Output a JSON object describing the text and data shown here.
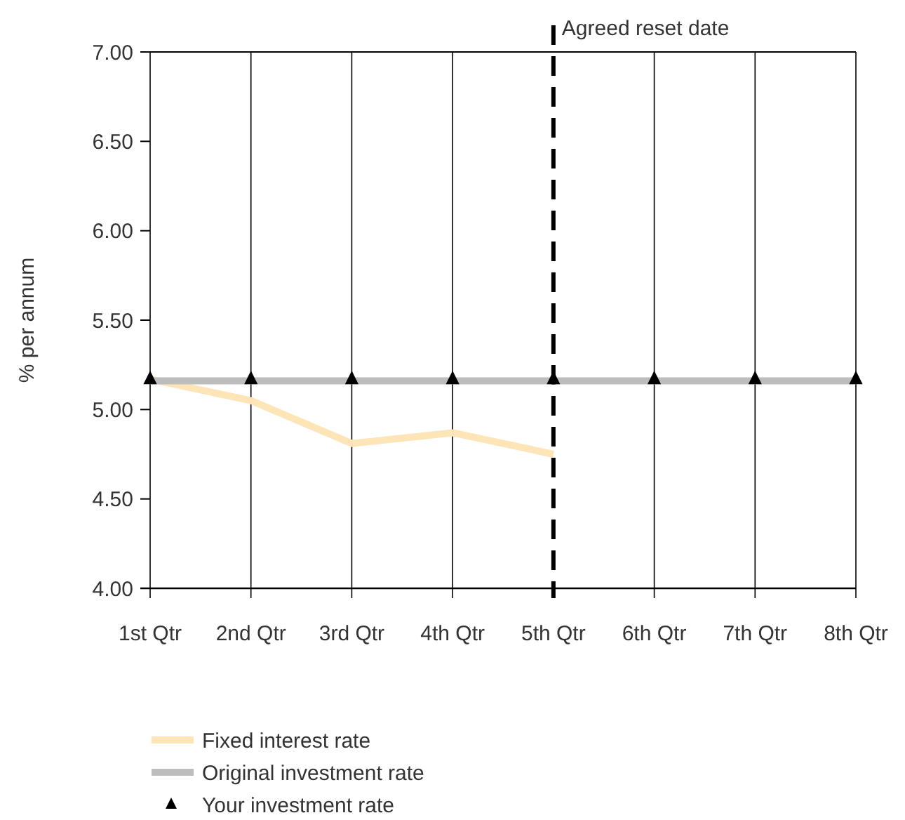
{
  "chart_data": {
    "type": "line",
    "ylabel": "% per annum",
    "categories": [
      "1st Qtr",
      "2nd Qtr",
      "3rd Qtr",
      "4th Qtr",
      "5th Qtr",
      "6th Qtr",
      "7th Qtr",
      "8th Qtr"
    ],
    "series": [
      {
        "name": "Fixed interest rate",
        "type": "line",
        "color": "#fde5b8",
        "values": [
          5.17,
          5.05,
          4.81,
          4.87,
          4.75,
          null,
          null,
          null
        ]
      },
      {
        "name": "Original investment rate",
        "type": "line",
        "color": "#bdbdbd",
        "values": [
          5.16,
          5.16,
          5.16,
          5.16,
          5.16,
          5.16,
          5.16,
          5.16
        ]
      },
      {
        "name": "Your investment rate",
        "type": "scatter",
        "marker": "triangle",
        "color": "#000000",
        "values": [
          5.17,
          5.17,
          5.17,
          5.17,
          5.17,
          5.17,
          5.17,
          5.17
        ]
      }
    ],
    "ylim": [
      4,
      7
    ],
    "yticks": [
      {
        "value": 4,
        "label": "4.00"
      },
      {
        "value": 4.5,
        "label": "4.50"
      },
      {
        "value": 5,
        "label": "5.00"
      },
      {
        "value": 5.5,
        "label": "5.50"
      },
      {
        "value": 6,
        "label": "6.00"
      },
      {
        "value": 6.5,
        "label": "6.50"
      },
      {
        "value": 7,
        "label": "7.00"
      }
    ],
    "grid": "x",
    "legend": "bottom",
    "ref_lines": [
      {
        "axis": "x",
        "value": "5th Qtr",
        "label": "Agreed reset date",
        "line_style": "dashed",
        "color": "#000000"
      }
    ]
  }
}
